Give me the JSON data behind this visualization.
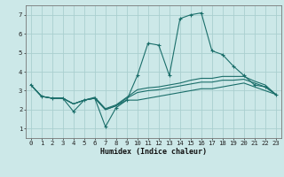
{
  "xlabel": "Humidex (Indice chaleur)",
  "bg_color": "#cce8e8",
  "line_color": "#1a6e6a",
  "grid_color": "#aacfcf",
  "x": [
    0,
    1,
    2,
    3,
    4,
    5,
    6,
    7,
    8,
    9,
    10,
    11,
    12,
    13,
    14,
    15,
    16,
    17,
    18,
    19,
    20,
    21,
    22,
    23
  ],
  "line1": [
    3.3,
    2.7,
    2.6,
    2.6,
    1.9,
    2.5,
    2.6,
    1.1,
    2.1,
    2.5,
    3.8,
    5.5,
    5.4,
    3.8,
    6.8,
    7.0,
    7.1,
    5.1,
    4.9,
    4.3,
    3.8,
    3.3,
    3.2,
    2.8
  ],
  "line2": [
    3.3,
    2.7,
    2.6,
    2.6,
    2.3,
    2.5,
    2.65,
    2.05,
    2.25,
    2.65,
    3.05,
    3.15,
    3.2,
    3.3,
    3.4,
    3.55,
    3.65,
    3.65,
    3.75,
    3.75,
    3.75,
    3.5,
    3.3,
    2.8
  ],
  "line3": [
    3.3,
    2.7,
    2.6,
    2.6,
    2.3,
    2.5,
    2.6,
    2.0,
    2.2,
    2.6,
    2.9,
    3.0,
    3.05,
    3.15,
    3.25,
    3.35,
    3.45,
    3.45,
    3.55,
    3.55,
    3.6,
    3.4,
    3.2,
    2.8
  ],
  "line4": [
    3.3,
    2.7,
    2.6,
    2.6,
    2.3,
    2.5,
    2.6,
    2.0,
    2.2,
    2.5,
    2.5,
    2.6,
    2.7,
    2.8,
    2.9,
    3.0,
    3.1,
    3.1,
    3.2,
    3.3,
    3.4,
    3.2,
    3.0,
    2.8
  ],
  "ylim": [
    0.5,
    7.5
  ],
  "xlim": [
    -0.5,
    23.5
  ],
  "yticks": [
    1,
    2,
    3,
    4,
    5,
    6,
    7
  ],
  "xticks": [
    0,
    1,
    2,
    3,
    4,
    5,
    6,
    7,
    8,
    9,
    10,
    11,
    12,
    13,
    14,
    15,
    16,
    17,
    18,
    19,
    20,
    21,
    22,
    23
  ],
  "xlabel_fontsize": 6.0,
  "tick_fontsize": 5.2
}
